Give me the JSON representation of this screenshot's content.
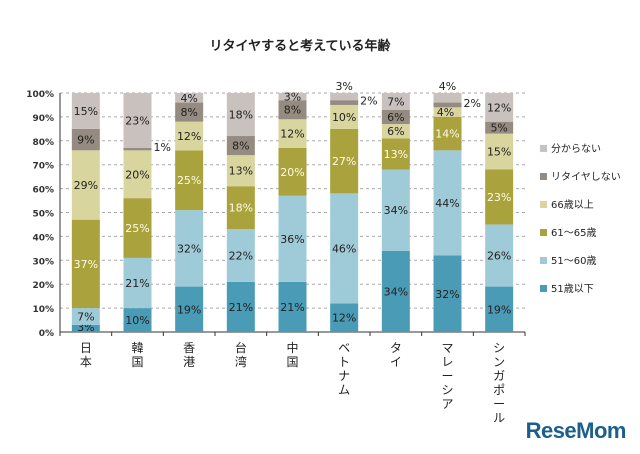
{
  "chart_data": {
    "type": "bar",
    "stacked": true,
    "title": "リタイヤすると考えている年齢",
    "categories": [
      "日本",
      "韓国",
      "香港",
      "台湾",
      "中国",
      "ベトナム",
      "タイ",
      "マレーシア",
      "シンガポール"
    ],
    "series": [
      {
        "name": "51歳以下",
        "color": "#4a9bb6",
        "values": [
          3,
          10,
          19,
          21,
          21,
          12,
          34,
          32,
          19
        ]
      },
      {
        "name": "51～60歳",
        "color": "#9fcbd9",
        "values": [
          7,
          21,
          32,
          22,
          36,
          46,
          34,
          44,
          26
        ]
      },
      {
        "name": "61～65歳",
        "color": "#aaa23c",
        "values": [
          37,
          25,
          25,
          18,
          20,
          27,
          13,
          14,
          23
        ]
      },
      {
        "name": "66歳以上",
        "color": "#d9d59f",
        "values": [
          29,
          20,
          12,
          13,
          12,
          10,
          6,
          4,
          15
        ]
      },
      {
        "name": "リタイヤしない",
        "color": "#958b81",
        "values": [
          9,
          1,
          8,
          8,
          8,
          2,
          6,
          2,
          5
        ]
      },
      {
        "name": "分からない",
        "color": "#c9c1bd",
        "values": [
          15,
          23,
          4,
          18,
          3,
          3,
          7,
          4,
          12
        ]
      }
    ],
    "yticks": [
      "0%",
      "10%",
      "20%",
      "30%",
      "40%",
      "50%",
      "60%",
      "70%",
      "80%",
      "90%",
      "100%"
    ],
    "ylim": [
      0,
      100
    ],
    "grid": "dashed horizontal",
    "legend": "right"
  },
  "logo": "ReseMom"
}
